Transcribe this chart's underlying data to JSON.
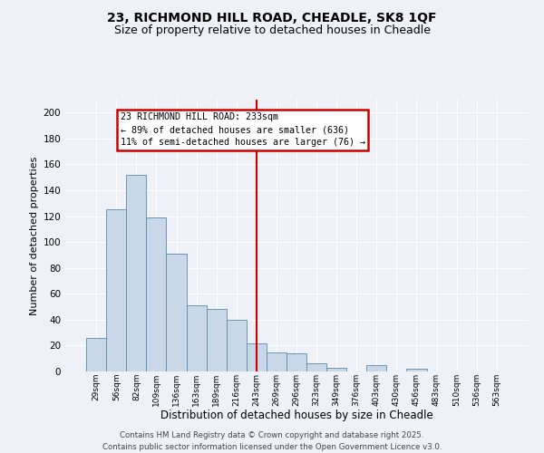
{
  "title1": "23, RICHMOND HILL ROAD, CHEADLE, SK8 1QF",
  "title2": "Size of property relative to detached houses in Cheadle",
  "xlabel": "Distribution of detached houses by size in Cheadle",
  "ylabel": "Number of detached properties",
  "categories": [
    "29sqm",
    "56sqm",
    "82sqm",
    "109sqm",
    "136sqm",
    "163sqm",
    "189sqm",
    "216sqm",
    "243sqm",
    "269sqm",
    "296sqm",
    "323sqm",
    "349sqm",
    "376sqm",
    "403sqm",
    "430sqm",
    "456sqm",
    "483sqm",
    "510sqm",
    "536sqm",
    "563sqm"
  ],
  "values": [
    26,
    125,
    152,
    119,
    91,
    51,
    48,
    40,
    22,
    15,
    14,
    6,
    3,
    0,
    5,
    0,
    2,
    0,
    0,
    0,
    0
  ],
  "bar_color": "#c8d8e8",
  "bar_edge_color": "#5a8ab0",
  "vline_x_index": 8,
  "vline_color": "#cc0000",
  "annotation_line1": "23 RICHMOND HILL ROAD: 233sqm",
  "annotation_line2": "← 89% of detached houses are smaller (636)",
  "annotation_line3": "11% of semi-detached houses are larger (76) →",
  "annotation_box_color": "#cc0000",
  "footer1": "Contains HM Land Registry data © Crown copyright and database right 2025.",
  "footer2": "Contains public sector information licensed under the Open Government Licence v3.0.",
  "ylim": [
    0,
    210
  ],
  "yticks": [
    0,
    20,
    40,
    60,
    80,
    100,
    120,
    140,
    160,
    180,
    200
  ],
  "bg_color": "#eef2f8",
  "grid_color": "#ffffff",
  "title1_fontsize": 10,
  "title2_fontsize": 9
}
